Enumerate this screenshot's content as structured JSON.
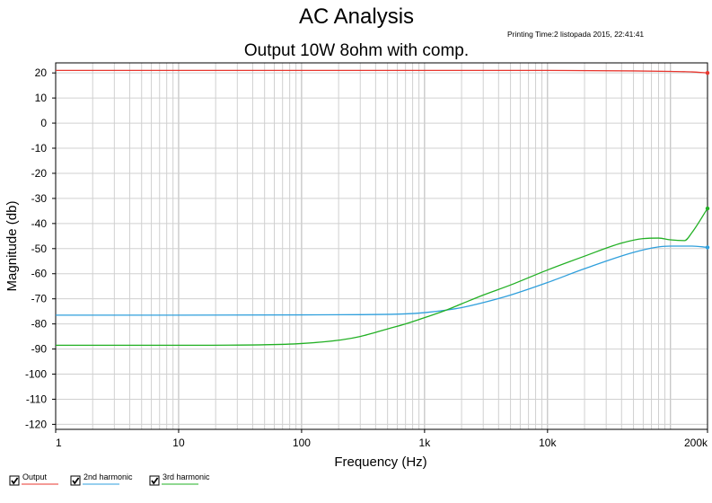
{
  "app": {
    "title": "AC Analysis",
    "printing_time": "Printing Time:2 listopada 2015, 22:41:41"
  },
  "chart_data": {
    "type": "line",
    "title": "Output 10W 8ohm with comp.",
    "xlabel": "Frequency (Hz)",
    "ylabel": "Magnitude (db)",
    "x_scale": "log",
    "xlim": [
      1,
      200000
    ],
    "ylim": [
      -122,
      24
    ],
    "grid": true,
    "legend_position": "bottom-left",
    "x_ticks": [
      {
        "value": 1,
        "label": "1"
      },
      {
        "value": 10,
        "label": "10"
      },
      {
        "value": 100,
        "label": "100"
      },
      {
        "value": 1000,
        "label": "1k"
      },
      {
        "value": 10000,
        "label": "10k"
      },
      {
        "value": 200000,
        "label": "200k"
      }
    ],
    "y_ticks": [
      {
        "value": 20,
        "label": "20"
      },
      {
        "value": 10,
        "label": "10"
      },
      {
        "value": 0,
        "label": "0"
      },
      {
        "value": -10,
        "label": "-10"
      },
      {
        "value": -20,
        "label": "-20"
      },
      {
        "value": -30,
        "label": "-30"
      },
      {
        "value": -40,
        "label": "-40"
      },
      {
        "value": -50,
        "label": "-50"
      },
      {
        "value": -60,
        "label": "-60"
      },
      {
        "value": -70,
        "label": "-70"
      },
      {
        "value": -80,
        "label": "-80"
      },
      {
        "value": -90,
        "label": "-90"
      },
      {
        "value": -100,
        "label": "-100"
      },
      {
        "value": -110,
        "label": "-110"
      },
      {
        "value": -120,
        "label": "-120"
      }
    ],
    "series": [
      {
        "name": "Output",
        "color": "#e8372f",
        "checked": true,
        "x": [
          1,
          10,
          100,
          1000,
          10000,
          50000,
          100000,
          150000,
          200000
        ],
        "y": [
          21.0,
          21.0,
          21.0,
          21.0,
          21.0,
          20.8,
          20.6,
          20.4,
          20.0
        ]
      },
      {
        "name": "2nd harmonic",
        "color": "#2f9fdc",
        "checked": true,
        "x": [
          1,
          10,
          100,
          300,
          700,
          1000,
          1500,
          2000,
          3000,
          5000,
          10000,
          20000,
          50000,
          80000,
          100000,
          150000,
          200000
        ],
        "y": [
          -76.5,
          -76.5,
          -76.4,
          -76.3,
          -76.0,
          -75.5,
          -74.5,
          -73.5,
          -71.5,
          -68.5,
          -63.5,
          -58.0,
          -51.5,
          -49.3,
          -49.0,
          -49.0,
          -49.5
        ]
      },
      {
        "name": "3rd harmonic",
        "color": "#22b024",
        "checked": true,
        "x": [
          1,
          10,
          50,
          100,
          200,
          300,
          500,
          700,
          1000,
          1500,
          2000,
          3000,
          5000,
          10000,
          20000,
          40000,
          60000,
          80000,
          100000,
          130000,
          150000,
          200000
        ],
        "y": [
          -88.5,
          -88.5,
          -88.3,
          -87.8,
          -86.5,
          -85.0,
          -82.0,
          -80.0,
          -77.5,
          -74.5,
          -72.0,
          -68.5,
          -64.5,
          -58.5,
          -53.0,
          -47.8,
          -46.0,
          -45.8,
          -46.5,
          -46.8,
          -43.5,
          -34.0
        ]
      }
    ]
  }
}
